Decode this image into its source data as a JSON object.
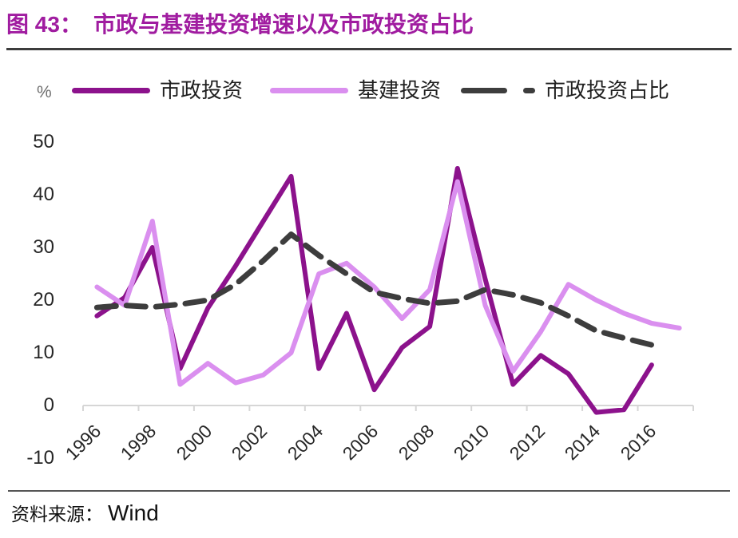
{
  "header": {
    "figure_label": "图 43：",
    "title": "市政与基建投资增速以及市政投资占比"
  },
  "chart": {
    "unit_label": "%",
    "legend": [
      {
        "label": "市政投资",
        "color": "#8C128C",
        "style": "solid"
      },
      {
        "label": "基建投资",
        "color": "#DA8FEF",
        "style": "solid"
      },
      {
        "label": "市政投资占比",
        "color": "#3D3D3D",
        "style": "dashed"
      }
    ],
    "y_tick_values": [
      50,
      40,
      30,
      20,
      10,
      0,
      -10
    ],
    "x_tick_labels": [
      "1996",
      "1998",
      "2000",
      "2002",
      "2004",
      "2006",
      "2008",
      "2010",
      "2012",
      "2014",
      "2016"
    ]
  },
  "chart_data": {
    "type": "line",
    "x": [
      1996,
      1997,
      1998,
      1999,
      2000,
      2001,
      2002,
      2003,
      2004,
      2005,
      2006,
      2007,
      2008,
      2009,
      2010,
      2011,
      2012,
      2013,
      2014,
      2015,
      2016,
      2017
    ],
    "series": [
      {
        "name": "市政投资",
        "color": "#8C128C",
        "dashed": false,
        "values": [
          17,
          20.5,
          30,
          7,
          18.5,
          26.5,
          35,
          43.5,
          7,
          17.5,
          3,
          11,
          15,
          45,
          24,
          4,
          9.5,
          6,
          -1.3,
          -0.8,
          7.7
        ]
      },
      {
        "name": "基建投资",
        "color": "#DA8FEF",
        "dashed": false,
        "values": [
          22.5,
          19,
          35,
          4,
          8,
          4.3,
          5.8,
          10,
          25,
          27,
          22.5,
          16.5,
          22,
          42.5,
          19,
          6.5,
          14,
          23,
          20,
          17.5,
          15.6,
          14.7
        ]
      },
      {
        "name": "市政投资占比",
        "color": "#3D3D3D",
        "dashed": true,
        "values": [
          18.6,
          19,
          18.7,
          19.2,
          20,
          23,
          27.5,
          32.5,
          28.5,
          25,
          21.5,
          20.3,
          19.4,
          19.8,
          22,
          21,
          19.5,
          17,
          14.2,
          12.8,
          11.5
        ]
      }
    ],
    "title": "市政与基建投资增速以及市政投资占比",
    "xlabel": "",
    "ylabel": "%",
    "ylim": [
      -10,
      50
    ],
    "grid": false,
    "legend_position": "top"
  },
  "footer": {
    "source_label": "资料来源：",
    "source_value": "Wind"
  }
}
